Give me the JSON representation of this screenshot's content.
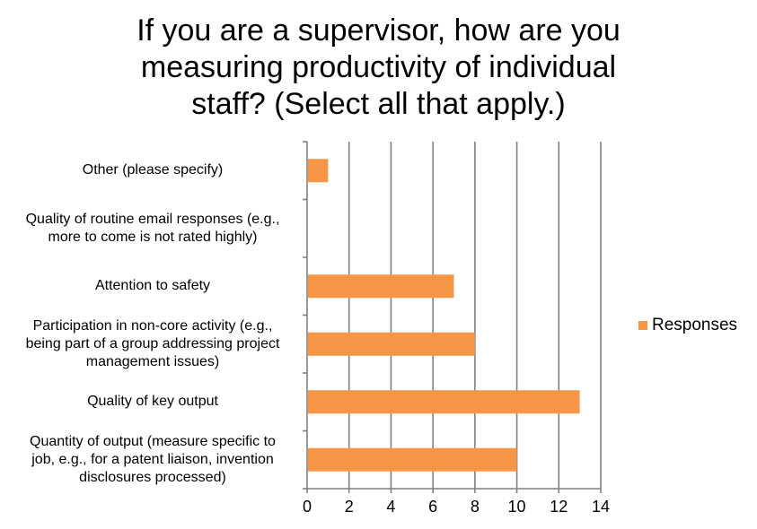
{
  "chart_data": {
    "type": "bar",
    "orientation": "horizontal",
    "title": "If you are a supervisor, how are you measuring productivity of individual staff?  (Select all that apply.)",
    "title_lines": [
      "If you are a supervisor, how are you",
      "measuring productivity of individual",
      "staff?  (Select all that apply.)"
    ],
    "categories": [
      "Other (please specify)",
      "Quality of routine email responses (e.g., more to come is not rated highly)",
      "Attention to safety",
      "Participation in non-core activity (e.g., being part of a group addressing project management issues)",
      "Quality of key output",
      "Quantity of output (measure specific to job, e.g., for a patent liaison, invention disclosures processed)"
    ],
    "category_lines": [
      [
        "Other (please specify)"
      ],
      [
        "Quality of routine email responses (e.g.,",
        "more to come is not rated highly)"
      ],
      [
        "Attention to safety"
      ],
      [
        "Participation in non-core activity (e.g.,",
        "being part of a group addressing project",
        "management issues)"
      ],
      [
        "Quality of key output"
      ],
      [
        "Quantity of output (measure specific to",
        "job, e.g., for a patent liaison, invention",
        "disclosures processed)"
      ]
    ],
    "series": [
      {
        "name": "Responses",
        "values": [
          1,
          0,
          7,
          8,
          13,
          10
        ],
        "color": "#f79646"
      }
    ],
    "xlim": [
      0,
      14
    ],
    "xticks": [
      "0",
      "2",
      "4",
      "6",
      "8",
      "10",
      "12",
      "14"
    ],
    "xlabel": "",
    "ylabel": "",
    "grid": "vertical",
    "legend": "right"
  }
}
